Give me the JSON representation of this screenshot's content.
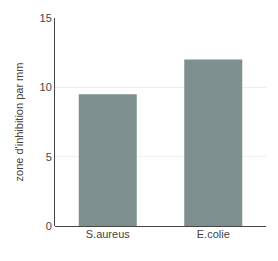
{
  "chart_data": {
    "type": "bar",
    "categories": [
      "S.aureus",
      "E.colie"
    ],
    "values": [
      9.5,
      12.0
    ],
    "color": "#7d8f8f",
    "ylabel": "zone d'inhibition par mm",
    "ylim": [
      0,
      15
    ],
    "yticks": [
      0,
      5,
      10,
      15
    ],
    "grid": true
  }
}
